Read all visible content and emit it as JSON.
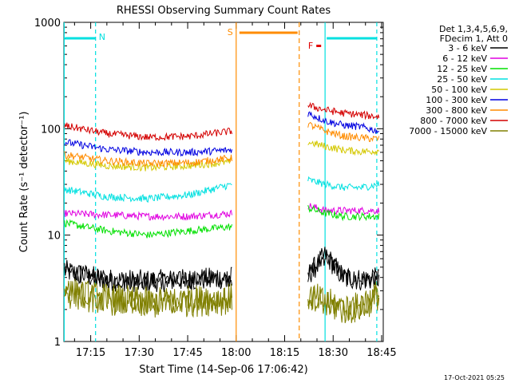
{
  "chart_data": {
    "type": "line",
    "title": "RHESSI Observing Summary Count Rates",
    "xlabel": "Start Time (14-Sep-06 17:06:42)",
    "ylabel": "Count Rate (s⁻¹ detector⁻¹)",
    "yscale": "log",
    "ylim": [
      1,
      1000
    ],
    "xlim_minutes": [
      6.7,
      105.5
    ],
    "y_ticks": [
      "1",
      "10",
      "100",
      "1000"
    ],
    "x_ticks": [
      {
        "label": "17:15",
        "t": 15
      },
      {
        "label": "17:30",
        "t": 30
      },
      {
        "label": "17:45",
        "t": 45
      },
      {
        "label": "18:00",
        "t": 60
      },
      {
        "label": "18:15",
        "t": 75
      },
      {
        "label": "18:30",
        "t": 90
      },
      {
        "label": "18:45",
        "t": 105
      }
    ],
    "gaps": [
      [
        59.0,
        82.0
      ]
    ],
    "series": [
      {
        "name": "3 - 6 keV",
        "color": "#000000",
        "before": [
          4.6,
          3.8,
          3.7,
          3.8,
          4.0
        ],
        "after": [
          4.2,
          6.5,
          4.0,
          3.8,
          3.9
        ]
      },
      {
        "name": "6 - 12 keV",
        "color": "#e000e0",
        "before": [
          16,
          15.5,
          15,
          15,
          16
        ],
        "after": [
          19,
          17,
          17,
          17,
          17
        ]
      },
      {
        "name": "12 - 25 keV",
        "color": "#00e000",
        "before": [
          13,
          11,
          10,
          11,
          12
        ],
        "after": [
          18,
          16,
          15,
          15,
          15
        ]
      },
      {
        "name": "25 - 50 keV",
        "color": "#00e0e0",
        "before": [
          27,
          23,
          22,
          24,
          30
        ],
        "after": [
          33,
          30,
          28,
          28,
          30
        ]
      },
      {
        "name": "50 - 100 keV",
        "color": "#d4c800",
        "before": [
          50,
          45,
          43,
          45,
          49
        ],
        "after": [
          75,
          68,
          63,
          61,
          62
        ]
      },
      {
        "name": "100 - 300 keV",
        "color": "#0000e0",
        "before": [
          75,
          64,
          60,
          60,
          63
        ],
        "after": [
          140,
          118,
          108,
          104,
          95
        ]
      },
      {
        "name": "300 - 800 keV",
        "color": "#ff8c00",
        "before": [
          57,
          50,
          47,
          48,
          53
        ],
        "after": [
          110,
          95,
          85,
          82,
          80
        ]
      },
      {
        "name": "800 - 7000 keV",
        "color": "#d40000",
        "before": [
          107,
          90,
          83,
          85,
          95
        ],
        "after": [
          165,
          150,
          140,
          135,
          130
        ]
      },
      {
        "name": "7000 - 15000 keV",
        "color": "#808000",
        "before": [
          2.9,
          2.5,
          2.3,
          2.4,
          2.5
        ],
        "after": [
          2.7,
          2.3,
          2.0,
          2.1,
          2.8
        ]
      }
    ],
    "annotations": [
      {
        "label": "N",
        "color": "#00e0e0",
        "t": 16.5
      },
      {
        "label": "S",
        "color": "#ff8c00",
        "t": 60
      },
      {
        "label": "F",
        "color": "#e00000",
        "t": 84
      }
    ],
    "legend": {
      "title_lines": [
        "Det 1,3,4,5,6,9,",
        "FDecim 1, Att 0"
      ],
      "placement": "right"
    }
  },
  "footer": {
    "date": "17-Oct-2021 05:25"
  }
}
